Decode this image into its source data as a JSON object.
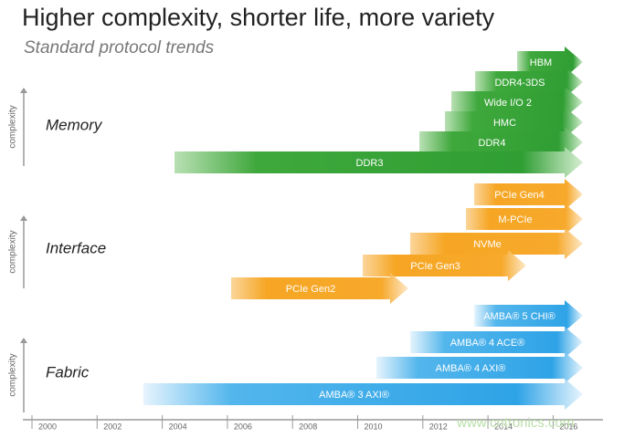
{
  "header": {
    "title": "Higher complexity, shorter life, more variety",
    "subtitle": "Standard protocol trends"
  },
  "groups": [
    {
      "label": "Memory",
      "axis_label": "complexity",
      "arrows": [
        "HBM",
        "DDR4-3DS",
        "Wide I/O 2",
        "HMC",
        "DDR4",
        "DDR3"
      ]
    },
    {
      "label": "Interface",
      "axis_label": "complexity",
      "arrows": [
        "PCIe Gen4",
        "M-PCIe",
        "NVMe",
        "PCIe Gen3",
        "PCIe Gen2"
      ]
    },
    {
      "label": "Fabric",
      "axis_label": "complexity",
      "arrows": [
        "AMBA® 5 CHI®",
        "AMBA® 4 ACE®",
        "AMBA® 4 AXI®",
        "AMBA® 3 AXI®"
      ]
    }
  ],
  "timeline": [
    "2000",
    "2002",
    "2004",
    "2006",
    "2008",
    "2010",
    "2012",
    "2014",
    "2016"
  ],
  "watermark": "www.cntronics.com"
}
